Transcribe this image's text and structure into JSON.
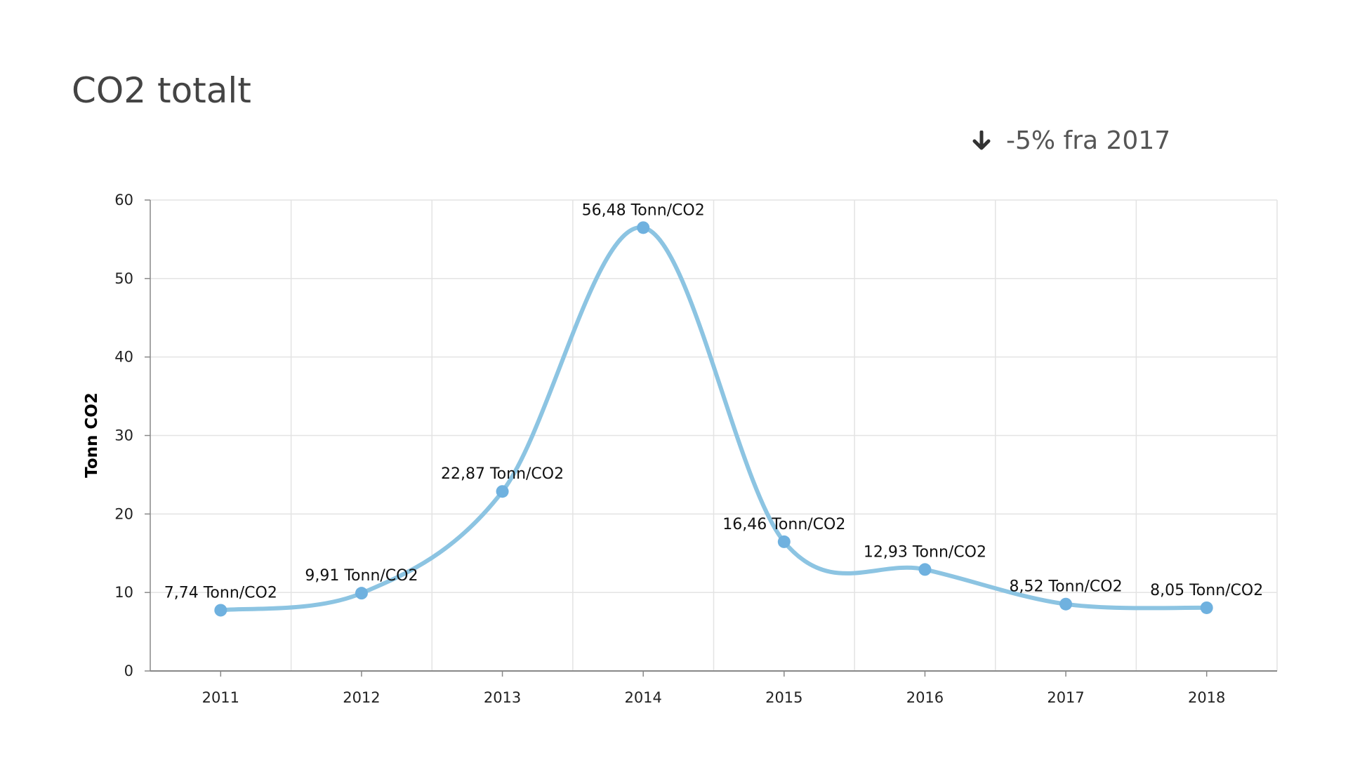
{
  "title": "CO2 totalt",
  "change": {
    "icon": "arrow-down-icon",
    "text": "-5% fra 2017"
  },
  "chart_data": {
    "type": "line",
    "title": "CO2 totalt",
    "xlabel": "",
    "ylabel": "Tonn CO2",
    "categories": [
      "2011",
      "2012",
      "2013",
      "2014",
      "2015",
      "2016",
      "2017",
      "2018"
    ],
    "series": [
      {
        "name": "Tonn/CO2",
        "values": [
          7.74,
          9.91,
          22.87,
          56.48,
          16.46,
          12.93,
          8.52,
          8.05
        ]
      }
    ],
    "data_labels": [
      "7,74 Tonn/CO2",
      "9,91 Tonn/CO2",
      "22,87 Tonn/CO2",
      "56,48 Tonn/CO2",
      "16,46 Tonn/CO2",
      "12,93 Tonn/CO2",
      "8,52 Tonn/CO2",
      "8,05 Tonn/CO2"
    ],
    "ylim": [
      0,
      60
    ],
    "yticks": [
      "0",
      "10",
      "20",
      "30",
      "40",
      "50",
      "60"
    ],
    "grid": true,
    "smooth": true,
    "colors": {
      "line": "#8cc4e2",
      "marker": "#6fb1df",
      "grid": "#e3e3e3",
      "axis": "#888888"
    }
  }
}
